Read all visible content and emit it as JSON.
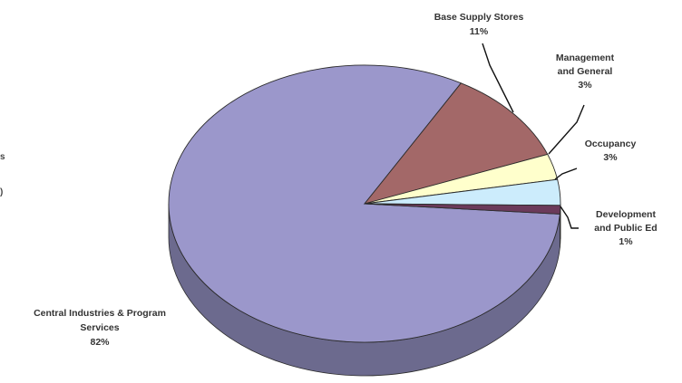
{
  "chart_data": {
    "type": "pie",
    "title": "",
    "slices": [
      {
        "label": "Central Industries & Program Services",
        "percent_label": "82%",
        "value": 82,
        "color": "#9b97cb",
        "side_color": "#6c6a8e"
      },
      {
        "label": "Base Supply Stores",
        "percent_label": "11%",
        "value": 11,
        "color": "#a36868",
        "side_color": "#7a4c4c"
      },
      {
        "label": "Management and General",
        "percent_label": "3%",
        "value": 3,
        "color": "#ffffcc",
        "side_color": "#c8c89a"
      },
      {
        "label": "Occupancy",
        "percent_label": "3%",
        "value": 3,
        "color": "#ccecfc",
        "side_color": "#9ab4c0"
      },
      {
        "label": "Development and Public Ed",
        "percent_label": "1%",
        "value": 1,
        "color": "#6b3a5a",
        "side_color": "#4e2a42"
      }
    ],
    "label_lines": [
      [
        "Central Industries & Program",
        "Services",
        "82%"
      ],
      [
        "Base Supply Stores",
        "11%"
      ],
      [
        "Management",
        "and General",
        "3%"
      ],
      [
        "Occupancy",
        "3%"
      ],
      [
        "Development",
        "and Public Ed",
        "1%"
      ]
    ],
    "legend": "none",
    "three_d": true
  },
  "stray_text": [
    "s",
    ")"
  ]
}
